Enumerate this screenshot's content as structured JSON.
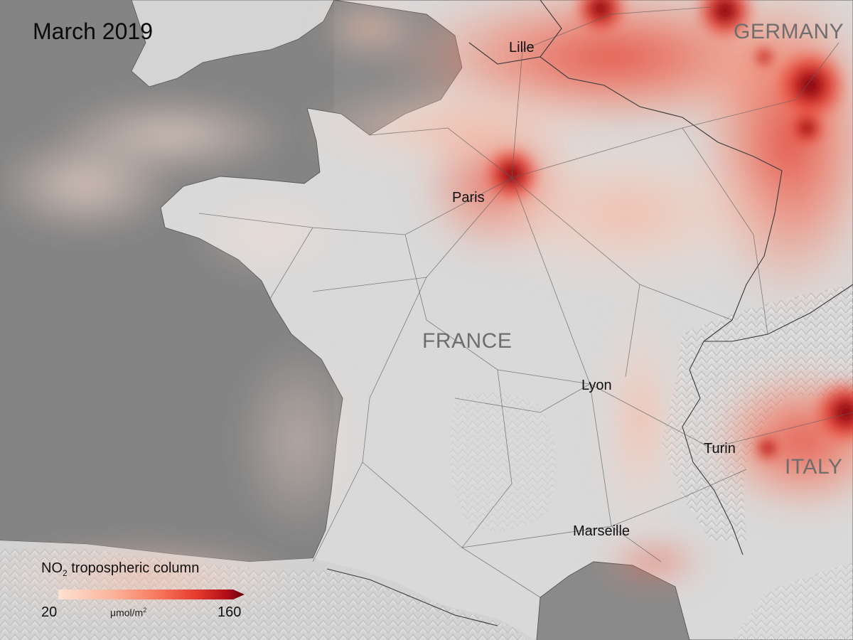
{
  "map": {
    "period": "March 2019",
    "countries": [
      {
        "name": "GERMANY",
        "key": "germany"
      },
      {
        "name": "FRANCE",
        "key": "france"
      },
      {
        "name": "ITALY",
        "key": "italy"
      }
    ],
    "cities": [
      {
        "name": "Lille",
        "key": "lille"
      },
      {
        "name": "Paris",
        "key": "paris"
      },
      {
        "name": "Lyon",
        "key": "lyon"
      },
      {
        "name": "Turin",
        "key": "turin"
      },
      {
        "name": "Marseille",
        "key": "marseille"
      }
    ],
    "legend": {
      "quantity_main": "NO",
      "quantity_sub": "2",
      "quantity_rest": " tropospheric column",
      "min": "20",
      "max": "160",
      "unit_main": "μmol/m",
      "unit_sup": "2",
      "colors": [
        "#fde0d2",
        "#fbb39a",
        "#f6745a",
        "#e4382c",
        "#b30f1a",
        "#67000d"
      ]
    },
    "colors": {
      "sea": "#8a8a8a",
      "land": "#d9d9d9",
      "pollution_peak": "#67000d",
      "pollution_high": "#e4382c",
      "pollution_low": "#fbb39a"
    }
  }
}
